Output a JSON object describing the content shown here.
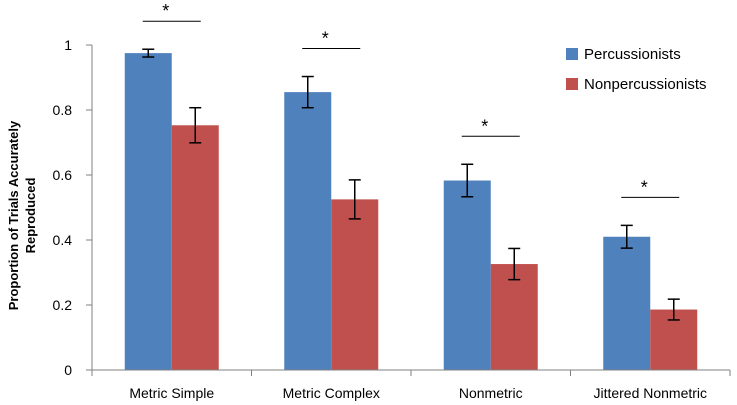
{
  "chart_data": {
    "type": "bar",
    "title": "",
    "xlabel": "",
    "ylabel_lines": [
      "Proportion of Trials Accurately",
      "Reproduced"
    ],
    "categories": [
      "Metric Simple",
      "Metric Complex",
      "Nonmetric",
      "Jittered Nonmetric"
    ],
    "ylim": [
      0,
      1
    ],
    "yticks": [
      0,
      0.2,
      0.4,
      0.6,
      0.8,
      1
    ],
    "ytick_labels": [
      "0",
      "0.2",
      "0.4",
      "0.6",
      "0.8",
      "1"
    ],
    "series": [
      {
        "name": "Percussionists",
        "color": "#4F81BD",
        "values": [
          0.975,
          0.855,
          0.583,
          0.41
        ],
        "errors": [
          0.012,
          0.048,
          0.05,
          0.035
        ]
      },
      {
        "name": "Nonpercussionists",
        "color": "#C0504D",
        "values": [
          0.753,
          0.525,
          0.326,
          0.186
        ],
        "errors": [
          0.054,
          0.06,
          0.048,
          0.032
        ]
      }
    ],
    "significance": [
      "*",
      "*",
      "*",
      "*"
    ],
    "legend_position": "top-right",
    "grid": false
  }
}
